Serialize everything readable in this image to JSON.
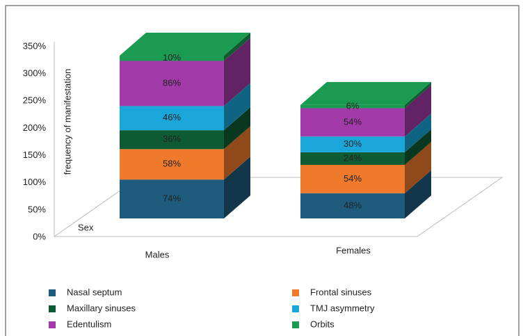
{
  "chart_data": {
    "type": "bar3d_stacked",
    "y_label": "frequency of manifestation",
    "x_label": "Sex",
    "categories": [
      "Males",
      "Females"
    ],
    "series": [
      {
        "name": "Nasal septum",
        "color": "#1f5b7c",
        "values": [
          74,
          48
        ],
        "value_labels": [
          "74%",
          "48%"
        ]
      },
      {
        "name": "Frontal sinuses",
        "color": "#ef7a2c",
        "values": [
          58,
          54
        ],
        "value_labels": [
          "58%",
          "54%"
        ]
      },
      {
        "name": "Maxillary sinuses",
        "color": "#0f5c34",
        "values": [
          36,
          24
        ],
        "value_labels": [
          "36%",
          "24%"
        ]
      },
      {
        "name": "TMJ asymmetry",
        "color": "#1ba6da",
        "values": [
          46,
          30
        ],
        "value_labels": [
          "46%",
          "30%"
        ]
      },
      {
        "name": "Edentulism",
        "color": "#a23aa9",
        "values": [
          86,
          54
        ],
        "value_labels": [
          "86%",
          "54%"
        ]
      },
      {
        "name": "Orbits",
        "color": "#1b9a52",
        "values": [
          10,
          6
        ],
        "value_labels": [
          "10%",
          "6%"
        ]
      }
    ],
    "ylim": [
      0,
      350
    ],
    "yticks": [
      {
        "value": 0,
        "label": "0%"
      },
      {
        "value": 50,
        "label": "50%"
      },
      {
        "value": 100,
        "label": "100%"
      },
      {
        "value": 150,
        "label": "150%"
      },
      {
        "value": 200,
        "label": "200%"
      },
      {
        "value": 250,
        "label": "250%"
      },
      {
        "value": 300,
        "label": "300%"
      },
      {
        "value": 350,
        "label": "350%"
      }
    ]
  }
}
